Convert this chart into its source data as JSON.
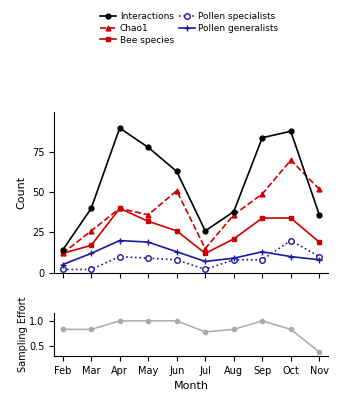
{
  "months": [
    "Feb",
    "Mar",
    "Apr",
    "May",
    "Jun",
    "Jul",
    "Aug",
    "Sep",
    "Oct",
    "Nov"
  ],
  "interactions": [
    14,
    40,
    90,
    78,
    63,
    26,
    38,
    84,
    88,
    36
  ],
  "chao1": [
    12,
    26,
    40,
    36,
    51,
    15,
    36,
    49,
    70,
    52
  ],
  "bee_species": [
    12,
    17,
    40,
    32,
    26,
    12,
    21,
    34,
    34,
    19
  ],
  "pollen_specialists": [
    2,
    2,
    10,
    9,
    8,
    2,
    8,
    8,
    20,
    10
  ],
  "pollen_generalists": [
    5,
    12,
    20,
    19,
    13,
    7,
    9,
    13,
    10,
    8
  ],
  "sampling_effort": [
    0.83,
    0.83,
    1.0,
    1.0,
    1.0,
    0.78,
    0.83,
    1.0,
    0.83,
    0.38
  ],
  "interactions_color": "#000000",
  "chao1_color": "#cc0000",
  "bee_species_color": "#cc0000",
  "pollen_specialists_color": "#1a1a9c",
  "pollen_generalists_color": "#1a1a9c",
  "sampling_effort_color": "#aaaaaa",
  "ylabel_main": "Count",
  "ylabel_sub": "Sampling Effort",
  "xlabel": "Month"
}
